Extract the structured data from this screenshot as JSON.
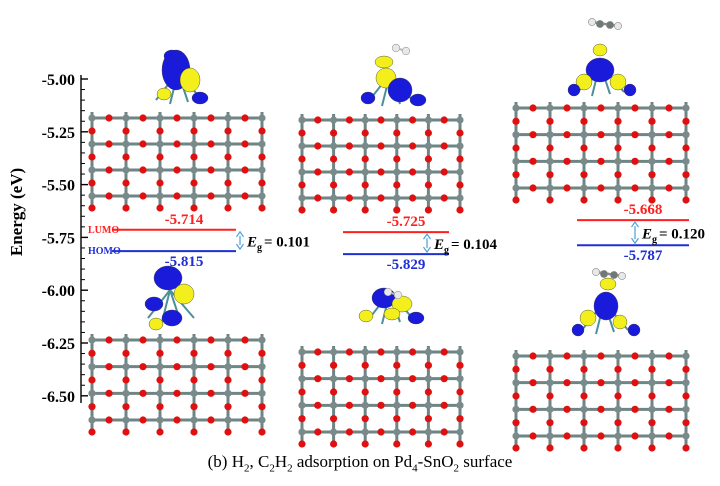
{
  "figure": {
    "y_axis": {
      "label": "Energy (eV)",
      "ticks": [
        "-5.00",
        "-5.25",
        "-5.50",
        "-5.75",
        "-6.00",
        "-6.25",
        "-6.50"
      ],
      "tick_values": [
        -5.0,
        -5.25,
        -5.5,
        -5.75,
        -6.0,
        -6.25,
        -6.5
      ]
    },
    "level_labels": {
      "lumo": "LUMO",
      "homo": "HOMO"
    },
    "gap_symbol": "E",
    "gap_subscript": "g",
    "panels": [
      {
        "system": "Pd4-SnO2",
        "lumo": "-5.714",
        "homo": "-5.815",
        "gap": "= 0.101"
      },
      {
        "system": "H2 on Pd4-SnO2",
        "lumo": "-5.725",
        "homo": "-5.829",
        "gap": "= 0.104"
      },
      {
        "system": "C2H2 on Pd4-SnO2",
        "lumo": "-5.668",
        "homo": "-5.787",
        "gap": "= 0.120"
      }
    ],
    "colors": {
      "lumo": "#ff1f1f",
      "homo": "#1f2fd6",
      "gap_arrow": "#4a9fd8",
      "orbital_positive": "#f2ef1c",
      "orbital_negative": "#1a1adb",
      "oxygen_atom": "#e01010",
      "tin_atom": "#7a8a8a",
      "bond": "#6e8585",
      "hydrogen_atom": "#e8e8e8"
    },
    "caption": {
      "prefix": "(b) H",
      "s1": "2",
      "mid1": ", C",
      "s2": "2",
      "mid2": "H",
      "s3": "2",
      "mid3": " adsorption on Pd",
      "s4": "4",
      "mid4": "-SnO",
      "s5": "2",
      "suffix": " surface"
    }
  }
}
